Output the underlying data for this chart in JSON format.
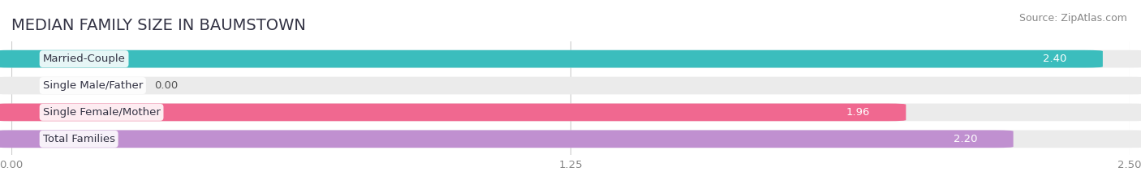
{
  "title": "MEDIAN FAMILY SIZE IN BAUMSTOWN",
  "source": "Source: ZipAtlas.com",
  "categories": [
    "Married-Couple",
    "Single Male/Father",
    "Single Female/Mother",
    "Total Families"
  ],
  "values": [
    2.4,
    0.0,
    1.96,
    2.2
  ],
  "bar_colors": [
    "#3bbdbd",
    "#a8b8e8",
    "#f06890",
    "#c090d0"
  ],
  "bar_labels": [
    "2.40",
    "0.00",
    "1.96",
    "2.20"
  ],
  "xlim": [
    0,
    2.5
  ],
  "xticks": [
    0.0,
    1.25,
    2.5
  ],
  "xtick_labels": [
    "0.00",
    "1.25",
    "2.50"
  ],
  "background_color": "#ffffff",
  "bar_bg_color": "#ebebeb",
  "title_fontsize": 14,
  "source_fontsize": 9,
  "label_fontsize": 9.5,
  "value_fontsize": 9.5
}
